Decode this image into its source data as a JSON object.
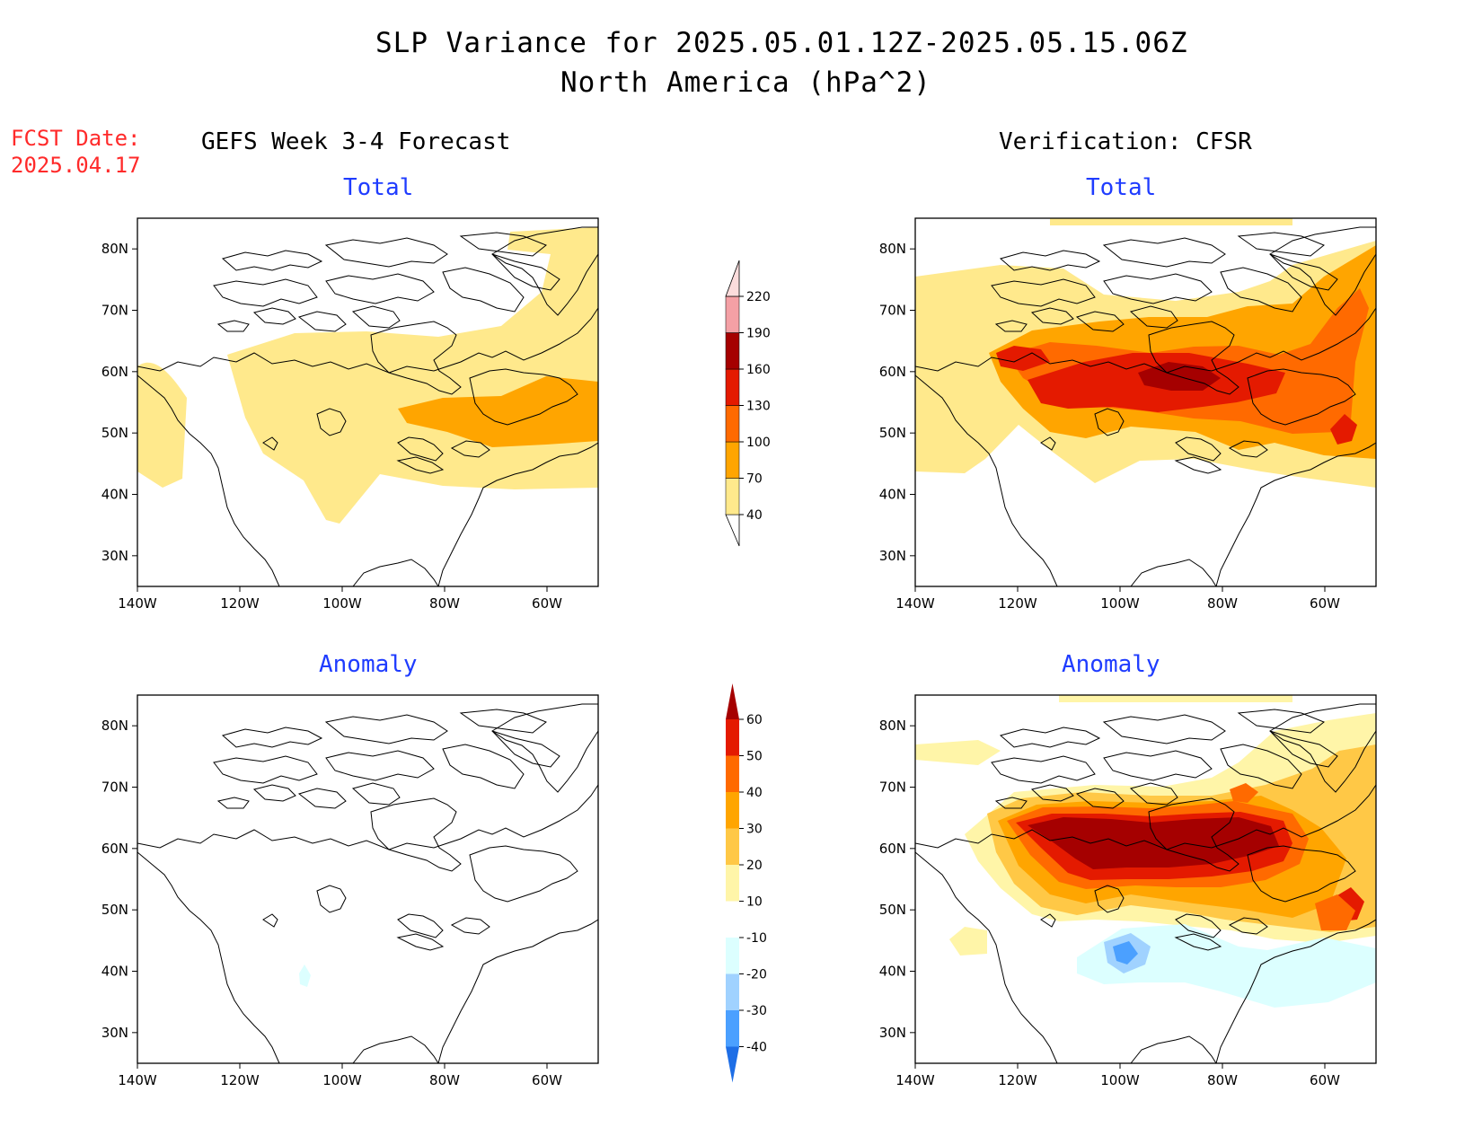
{
  "title_line1": "SLP Variance for 2025.05.01.12Z-2025.05.15.06Z",
  "title_line2": "North America (hPa^2)",
  "fcst_label": "FCST Date:",
  "fcst_date": "2025.04.17",
  "left_header": "GEFS Week 3-4 Forecast",
  "right_header": "Verification: CFSR",
  "panels": [
    {
      "id": "forecast-total",
      "subtitle": "Total"
    },
    {
      "id": "verification-total",
      "subtitle": "Total"
    },
    {
      "id": "forecast-anomaly",
      "subtitle": "Anomaly"
    },
    {
      "id": "verification-anomaly",
      "subtitle": "Anomaly"
    }
  ],
  "axes": {
    "lon_ticks": [
      "140W",
      "120W",
      "100W",
      "80W",
      "60W"
    ],
    "lat_ticks": [
      "80N",
      "70N",
      "60N",
      "50N",
      "40N",
      "30N"
    ],
    "lon_range": [
      -140,
      -50
    ],
    "lat_range": [
      25,
      85
    ]
  },
  "total_colorbar": {
    "labels": [
      "40",
      "70",
      "100",
      "130",
      "160",
      "190",
      "220"
    ],
    "colors": [
      "#ffe98c",
      "#ffa500",
      "#ff6a00",
      "#e41a00",
      "#a50000",
      "#f4a0a5",
      "#fcdcdc"
    ]
  },
  "anomaly_colorbar": {
    "labels": [
      "60",
      "50",
      "40",
      "30",
      "20",
      "10",
      "-10",
      "-20",
      "-30",
      "-40"
    ],
    "colors": [
      "#a50000",
      "#e41a00",
      "#ff6a00",
      "#ffa500",
      "#ffc846",
      "#fff5a8",
      "#ffffff",
      "#dcffff",
      "#a0d2ff",
      "#4ba0ff",
      "#1e6ee6"
    ]
  }
}
